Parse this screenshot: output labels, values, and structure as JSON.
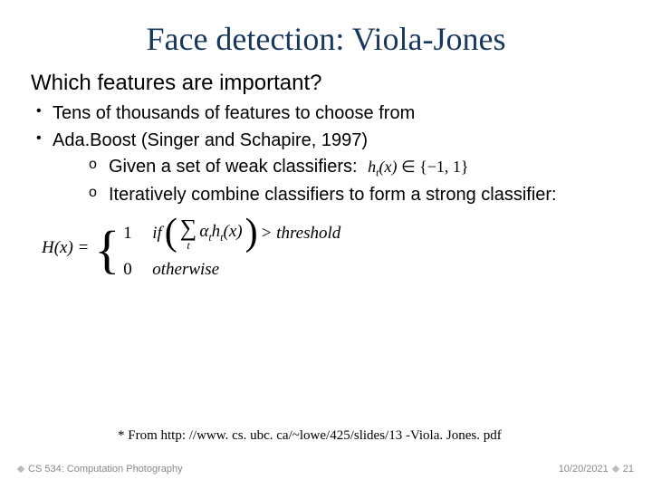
{
  "title": "Face detection: Viola-Jones",
  "subheading": "Which features are important?",
  "bullets": {
    "b1": "Tens of thousands of features to choose from",
    "b2": "Ada.Boost (Singer and Schapire, 1997)",
    "s1": "Given a set of weak classifiers:",
    "s1_math": "hₜ(x) ∈ {−1, 1}",
    "s2": "Iteratively combine classifiers to form a strong classifier:"
  },
  "equation": {
    "lhs": "H(x) = ",
    "case1_val": "1",
    "case1_cond_if": "if",
    "case1_sum_var": "t",
    "case1_inner": "αₜhₜ(x)",
    "case1_gt": " > threshold",
    "case0_val": "0",
    "case0_cond": "otherwise"
  },
  "citation": "* From http: //www. cs. ubc. ca/~lowe/425/slides/13 -Viola. Jones. pdf",
  "footer": {
    "course": "CS 534: Computation Photography",
    "date": "10/20/2021",
    "page": "21"
  },
  "colors": {
    "title": "#17375e",
    "footer_text": "#888888",
    "footer_dot": "#bbbbbb",
    "background": "#ffffff"
  }
}
